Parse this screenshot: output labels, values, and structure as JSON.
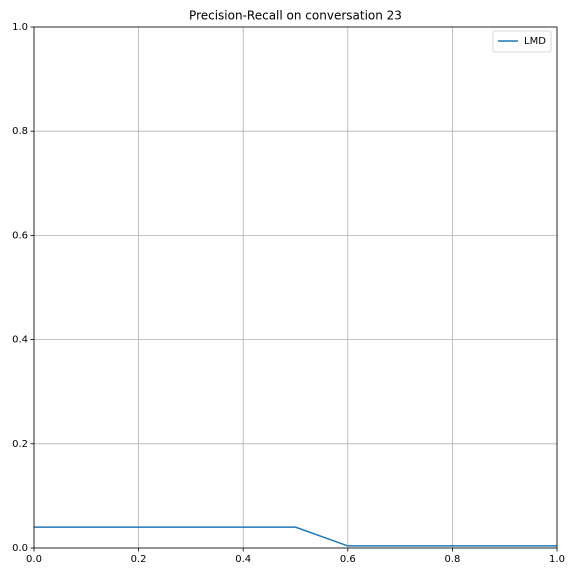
{
  "chart_data": {
    "type": "line",
    "title": "Precision-Recall on conversation 23",
    "x": [
      0,
      0.5,
      0.6,
      1
    ],
    "series": [
      {
        "name": "LMD",
        "color": "#1f77b4",
        "values": [
          0.04,
          0.04,
          0.004,
          0.004
        ]
      }
    ],
    "xlim": [
      0,
      1
    ],
    "ylim": [
      0,
      1
    ],
    "xticks": [
      {
        "value": 0,
        "label": "0.0"
      },
      0.2,
      0.4,
      0.6,
      0.8,
      {
        "value": 1,
        "label": "1.0"
      }
    ],
    "yticks": [
      {
        "value": 0,
        "label": "0.0"
      },
      0.2,
      0.4,
      0.6,
      0.8,
      {
        "value": 1,
        "label": "1.0"
      }
    ],
    "grid": true,
    "legend": "upper right"
  }
}
